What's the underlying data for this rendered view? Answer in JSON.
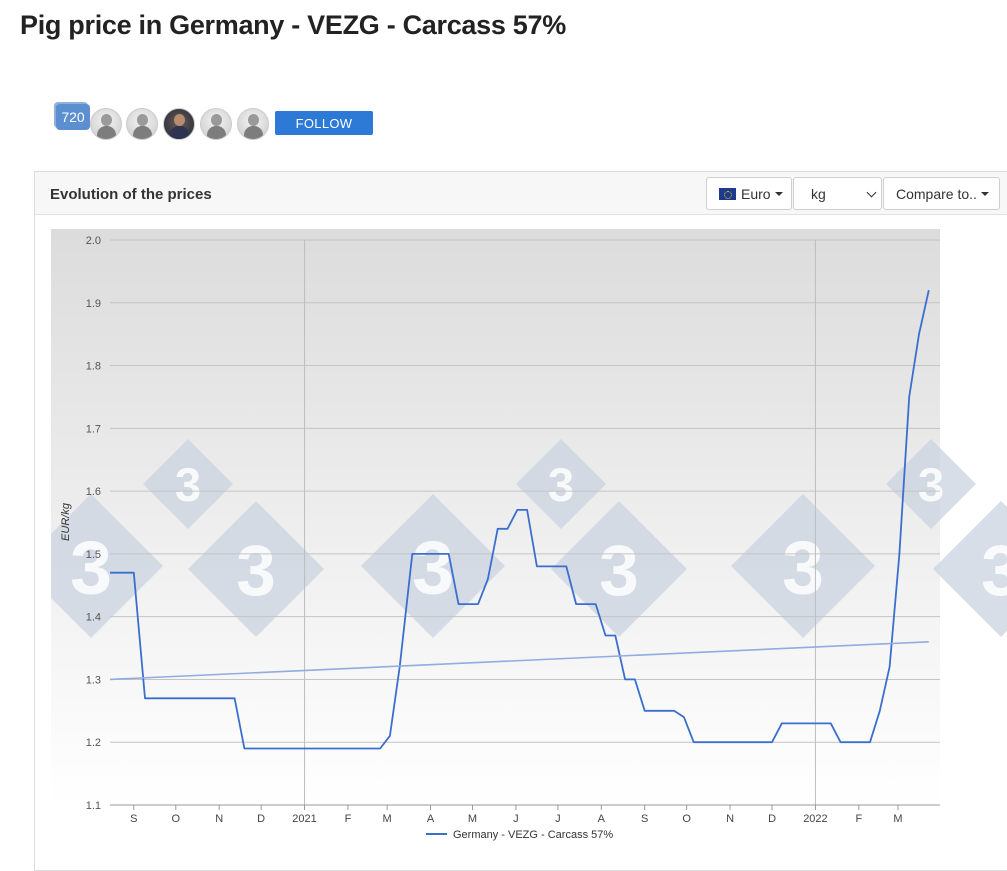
{
  "page": {
    "title": "Pig price in Germany - VEZG - Carcass 57%"
  },
  "followers": {
    "count": "720",
    "follow_label": "FOLLOW",
    "avatars": [
      "user",
      "user",
      "user-photo",
      "user",
      "user"
    ]
  },
  "panel": {
    "title": "Evolution of the prices",
    "currency": "Euro",
    "unit": "kg",
    "compare": "Compare to.."
  },
  "colors": {
    "series": "#3a6fcf",
    "trend": "#92acdf",
    "watermark": "#c9d3df",
    "plot_bg_top": "#dcdcdc",
    "plot_bg_bottom": "#ffffff"
  },
  "chart_data": {
    "type": "line",
    "ylabel": "EUR/kg",
    "ylim": [
      1.1,
      2.0
    ],
    "yticks": [
      1.1,
      1.2,
      1.3,
      1.4,
      1.5,
      1.6,
      1.7,
      1.8,
      1.9,
      2.0
    ],
    "xlim": [
      "2020-08-15",
      "2022-03-31"
    ],
    "xticks": [
      {
        "label": "S",
        "date": "2020-09-01"
      },
      {
        "label": "O",
        "date": "2020-10-01"
      },
      {
        "label": "N",
        "date": "2020-11-01"
      },
      {
        "label": "D",
        "date": "2020-12-01"
      },
      {
        "label": "2021",
        "date": "2021-01-01"
      },
      {
        "label": "F",
        "date": "2021-02-01"
      },
      {
        "label": "M",
        "date": "2021-03-01"
      },
      {
        "label": "A",
        "date": "2021-04-01"
      },
      {
        "label": "M",
        "date": "2021-05-01"
      },
      {
        "label": "J",
        "date": "2021-06-01"
      },
      {
        "label": "J",
        "date": "2021-07-01"
      },
      {
        "label": "A",
        "date": "2021-08-01"
      },
      {
        "label": "S",
        "date": "2021-09-01"
      },
      {
        "label": "O",
        "date": "2021-10-01"
      },
      {
        "label": "N",
        "date": "2021-11-01"
      },
      {
        "label": "D",
        "date": "2021-12-01"
      },
      {
        "label": "2022",
        "date": "2022-01-01"
      },
      {
        "label": "F",
        "date": "2022-02-01"
      },
      {
        "label": "M",
        "date": "2022-03-01"
      }
    ],
    "legend_position": "bottom",
    "grid": true,
    "series": [
      {
        "name": "Germany - VEZG - Carcass 57%",
        "points": [
          [
            "2020-08-15",
            1.47
          ],
          [
            "2020-09-01",
            1.47
          ],
          [
            "2020-09-09",
            1.27
          ],
          [
            "2020-11-12",
            1.27
          ],
          [
            "2020-11-19",
            1.19
          ],
          [
            "2021-02-24",
            1.19
          ],
          [
            "2021-03-03",
            1.21
          ],
          [
            "2021-03-10",
            1.32
          ],
          [
            "2021-03-19",
            1.5
          ],
          [
            "2021-04-14",
            1.5
          ],
          [
            "2021-04-21",
            1.42
          ],
          [
            "2021-05-05",
            1.42
          ],
          [
            "2021-05-12",
            1.46
          ],
          [
            "2021-05-19",
            1.54
          ],
          [
            "2021-05-26",
            1.54
          ],
          [
            "2021-06-02",
            1.57
          ],
          [
            "2021-06-09",
            1.57
          ],
          [
            "2021-06-16",
            1.48
          ],
          [
            "2021-07-07",
            1.48
          ],
          [
            "2021-07-14",
            1.42
          ],
          [
            "2021-07-28",
            1.42
          ],
          [
            "2021-08-04",
            1.37
          ],
          [
            "2021-08-11",
            1.37
          ],
          [
            "2021-08-18",
            1.3
          ],
          [
            "2021-08-25",
            1.3
          ],
          [
            "2021-09-01",
            1.25
          ],
          [
            "2021-09-22",
            1.25
          ],
          [
            "2021-09-29",
            1.24
          ],
          [
            "2021-10-06",
            1.2
          ],
          [
            "2021-12-01",
            1.2
          ],
          [
            "2021-12-08",
            1.23
          ],
          [
            "2022-01-12",
            1.23
          ],
          [
            "2022-01-19",
            1.2
          ],
          [
            "2022-02-09",
            1.2
          ],
          [
            "2022-02-16",
            1.25
          ],
          [
            "2022-02-23",
            1.32
          ],
          [
            "2022-03-02",
            1.5
          ],
          [
            "2022-03-09",
            1.75
          ],
          [
            "2022-03-16",
            1.85
          ],
          [
            "2022-03-23",
            1.92
          ]
        ]
      },
      {
        "trend": true,
        "points": [
          [
            "2020-08-15",
            1.3
          ],
          [
            "2022-03-23",
            1.36
          ]
        ]
      }
    ]
  }
}
